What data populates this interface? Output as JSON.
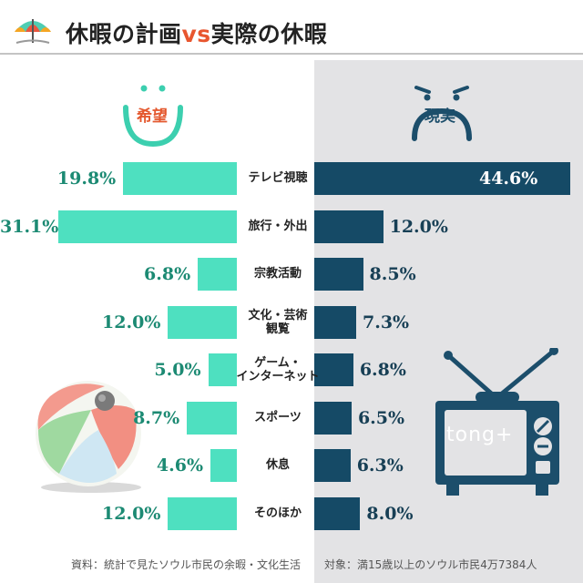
{
  "title": {
    "part1": "休暇の計画",
    "vs": "vs",
    "part2": "実際の休暇"
  },
  "colors": {
    "hope_bar": "#4ee0c0",
    "reality_bar": "#154a66",
    "hope_text": "#1c8a73",
    "reality_text": "#173f55",
    "accent": "#e8562f"
  },
  "icons": {
    "title": "beach-umbrella-icon",
    "hope": "smiley-face-icon",
    "reality": "frown-face-icon",
    "ball": "beach-ball-icon",
    "tv": "television-icon"
  },
  "labels": {
    "hope": "希望",
    "reality": "現実"
  },
  "tv_logo": "tong+",
  "footer": {
    "source": "資料：統計で見たソウル市民の余暇・文化生活",
    "target": "対象：満15歳以上のソウル市民4万7384人"
  },
  "chart_data": {
    "type": "bar",
    "title": "休暇の計画vs実際の休暇",
    "categories": [
      "テレビ視聴",
      "旅行・外出",
      "宗教活動",
      "文化・芸術観覧",
      "ゲーム・インターネット",
      "スポーツ",
      "休息",
      "そのほか"
    ],
    "category_lines": [
      [
        "テレビ視聴"
      ],
      [
        "旅行・外出"
      ],
      [
        "宗教活動"
      ],
      [
        "文化・芸術",
        "観覧"
      ],
      [
        "ゲーム・",
        "インターネット"
      ],
      [
        "スポーツ"
      ],
      [
        "休息"
      ],
      [
        "そのほか"
      ]
    ],
    "series": [
      {
        "name": "希望",
        "values": [
          19.8,
          31.1,
          6.8,
          12.0,
          5.0,
          8.7,
          4.6,
          12.0
        ],
        "labels": [
          "19.8%",
          "31.1%",
          "6.8%",
          "12.0%",
          "5.0%",
          "8.7%",
          "4.6%",
          "12.0%"
        ]
      },
      {
        "name": "現実",
        "values": [
          44.6,
          12.0,
          8.5,
          7.3,
          6.8,
          6.5,
          6.3,
          8.0
        ],
        "labels": [
          "44.6%",
          "12.0%",
          "8.5%",
          "7.3%",
          "6.8%",
          "6.5%",
          "6.3%",
          "8.0%"
        ]
      }
    ],
    "unit": "%",
    "layout": "back-to-back horizontal bars",
    "grid": false,
    "legend": "face labels at top"
  }
}
